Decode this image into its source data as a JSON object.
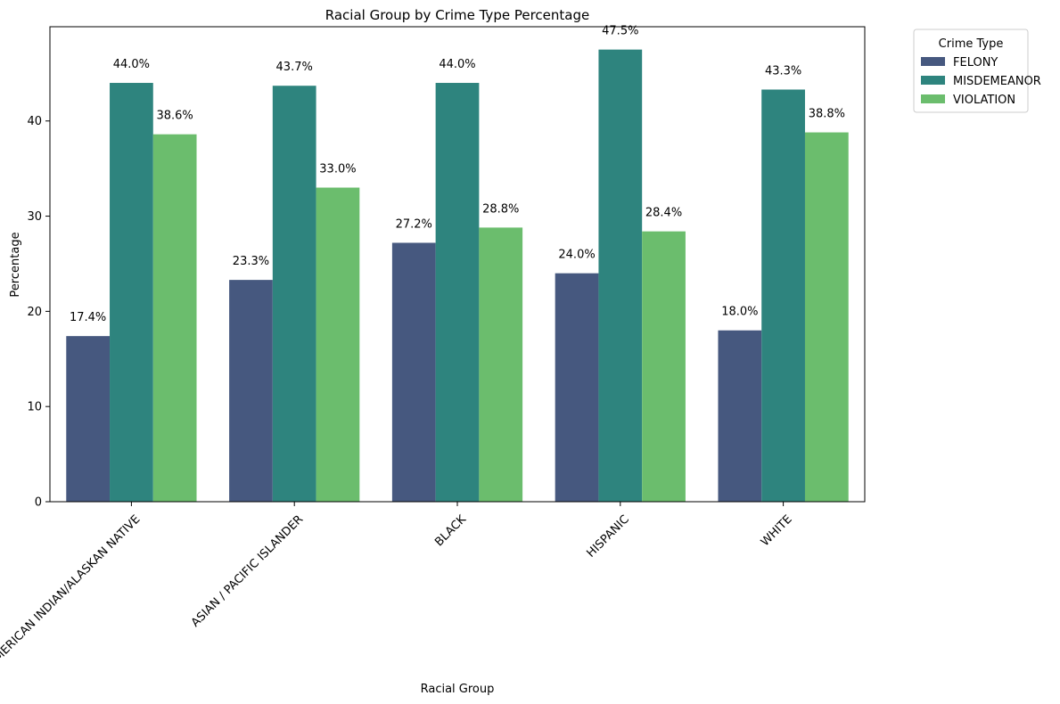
{
  "chart_data": {
    "type": "bar",
    "title": "Racial Group by Crime Type Percentage",
    "xlabel": "Racial Group",
    "ylabel": "Percentage",
    "ylim": [
      0,
      49.9
    ],
    "yticks": [
      0,
      10,
      20,
      30,
      40
    ],
    "categories": [
      "AMERICAN INDIAN/ALASKAN NATIVE",
      "ASIAN / PACIFIC ISLANDER",
      "BLACK",
      "HISPANIC",
      "WHITE"
    ],
    "series": [
      {
        "name": "FELONY",
        "color": "#46587f",
        "values": [
          17.4,
          23.3,
          27.2,
          24.0,
          18.0
        ],
        "labels": [
          "17.4%",
          "23.3%",
          "27.2%",
          "24.0%",
          "18.0%"
        ]
      },
      {
        "name": "MISDEMEANOR",
        "color": "#2e847e",
        "values": [
          44.0,
          43.7,
          44.0,
          47.5,
          43.3
        ],
        "labels": [
          "44.0%",
          "43.7%",
          "44.0%",
          "47.5%",
          "43.3%"
        ]
      },
      {
        "name": "VIOLATION",
        "color": "#6bbd6d",
        "values": [
          38.6,
          33.0,
          28.8,
          28.4,
          38.8
        ],
        "labels": [
          "38.6%",
          "33.0%",
          "28.8%",
          "28.4%",
          "38.8%"
        ]
      }
    ],
    "legend": {
      "title": "Crime Type",
      "placement": "outside-top-right"
    },
    "grid": false
  }
}
